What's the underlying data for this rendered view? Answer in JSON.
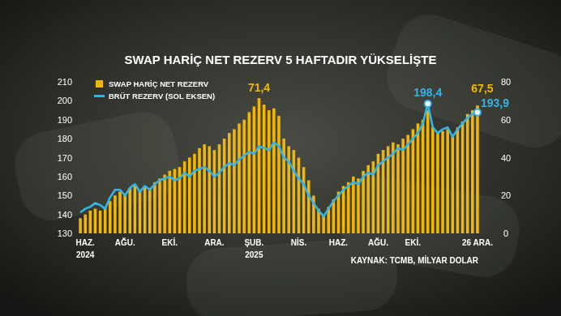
{
  "chart_data": {
    "type": "bar",
    "title": "SWAP HARİÇ NET REZERV 5 HAFTADIR YÜKSELİŞTE",
    "note": "KAYNAK: TCMB, MİLYAR DOLAR",
    "categories": [
      null,
      "HAZ.\n2024",
      null,
      null,
      null,
      null,
      null,
      null,
      null,
      "AĞU.",
      null,
      null,
      null,
      null,
      null,
      null,
      null,
      null,
      "EKİ.",
      null,
      null,
      null,
      null,
      null,
      null,
      null,
      null,
      "ARA.",
      null,
      null,
      null,
      null,
      null,
      null,
      null,
      "ŞUB.\n2025",
      null,
      null,
      null,
      null,
      null,
      null,
      null,
      null,
      "NİS.",
      null,
      null,
      null,
      null,
      null,
      null,
      null,
      "HAZ.",
      null,
      null,
      null,
      null,
      null,
      null,
      null,
      "AĞU.",
      null,
      null,
      null,
      null,
      null,
      null,
      "EKİ.",
      null,
      null,
      null,
      null,
      null,
      null,
      null,
      null,
      null,
      null,
      null,
      null,
      "26 ARA."
    ],
    "series": [
      {
        "name": "SWAP HARİÇ NET REZERV",
        "type": "bar",
        "axis": "y2",
        "color": "#f2b705",
        "values": [
          8,
          10,
          12,
          13,
          12,
          14,
          17,
          20,
          22,
          21,
          24,
          26,
          23,
          25,
          24,
          27,
          29,
          31,
          33,
          34,
          35,
          38,
          40,
          42,
          45,
          47,
          46,
          44,
          47,
          50,
          53,
          55,
          58,
          60,
          64,
          67,
          71.4,
          68,
          65,
          66,
          62,
          50,
          46,
          44,
          40,
          35,
          28,
          20,
          13,
          10,
          14,
          18,
          22,
          25,
          27,
          30,
          29,
          33,
          36,
          38,
          42,
          44,
          46,
          48,
          47,
          50,
          52,
          55,
          58,
          60,
          65,
          56,
          53,
          54,
          55,
          52,
          56,
          59,
          63,
          65,
          67.5
        ],
        "value_labels": [
          null,
          null,
          null,
          null,
          null,
          null,
          null,
          null,
          null,
          null,
          null,
          null,
          null,
          null,
          null,
          null,
          null,
          null,
          null,
          null,
          null,
          null,
          null,
          null,
          null,
          null,
          null,
          null,
          null,
          null,
          null,
          null,
          null,
          null,
          null,
          null,
          "71,4",
          null,
          null,
          null,
          null,
          null,
          null,
          null,
          null,
          null,
          null,
          null,
          null,
          null,
          null,
          null,
          null,
          null,
          null,
          null,
          null,
          null,
          null,
          null,
          null,
          null,
          null,
          null,
          null,
          null,
          null,
          null,
          null,
          null,
          null,
          null,
          null,
          null,
          null,
          null,
          null,
          null,
          null,
          null,
          "67,5"
        ]
      },
      {
        "name": "BRÜT REZERV (SOL EKSEN)",
        "type": "line",
        "color": "#33b5ea",
        "values": [
          141,
          143,
          144,
          146,
          145,
          143,
          149,
          153,
          153,
          150,
          154,
          156,
          152,
          155,
          153,
          156,
          158,
          159,
          160,
          158,
          159,
          162,
          160,
          163,
          164,
          165,
          163,
          160,
          162,
          165,
          167,
          166,
          169,
          171,
          173,
          172,
          176,
          175,
          174,
          178,
          176,
          170,
          168,
          163,
          159,
          156,
          150,
          146,
          142,
          139,
          143,
          147,
          150,
          153,
          155,
          157,
          156,
          160,
          162,
          161,
          166,
          168,
          170,
          172,
          175,
          174,
          177,
          180,
          183,
          188,
          198.4,
          186,
          183,
          185,
          186,
          181,
          185,
          188,
          191,
          193,
          193.9
        ],
        "value_labels": [
          null,
          null,
          null,
          null,
          null,
          null,
          null,
          null,
          null,
          null,
          null,
          null,
          null,
          null,
          null,
          null,
          null,
          null,
          null,
          null,
          null,
          null,
          null,
          null,
          null,
          null,
          null,
          null,
          null,
          null,
          null,
          null,
          null,
          null,
          null,
          null,
          null,
          null,
          null,
          null,
          null,
          null,
          null,
          null,
          null,
          null,
          null,
          null,
          null,
          null,
          null,
          null,
          null,
          null,
          null,
          null,
          null,
          null,
          null,
          null,
          null,
          null,
          null,
          null,
          null,
          null,
          null,
          null,
          null,
          null,
          "198,4",
          null,
          null,
          null,
          null,
          null,
          null,
          null,
          null,
          null,
          "193,9"
        ]
      }
    ],
    "ylim": [
      130,
      210
    ],
    "yticks": [
      130,
      140,
      150,
      160,
      170,
      180,
      190,
      200,
      210
    ],
    "y2lim": [
      0,
      80
    ],
    "y2ticks": [
      0,
      20,
      40,
      60,
      80
    ],
    "grid": false,
    "legend": "upper left",
    "data_labels": true
  }
}
